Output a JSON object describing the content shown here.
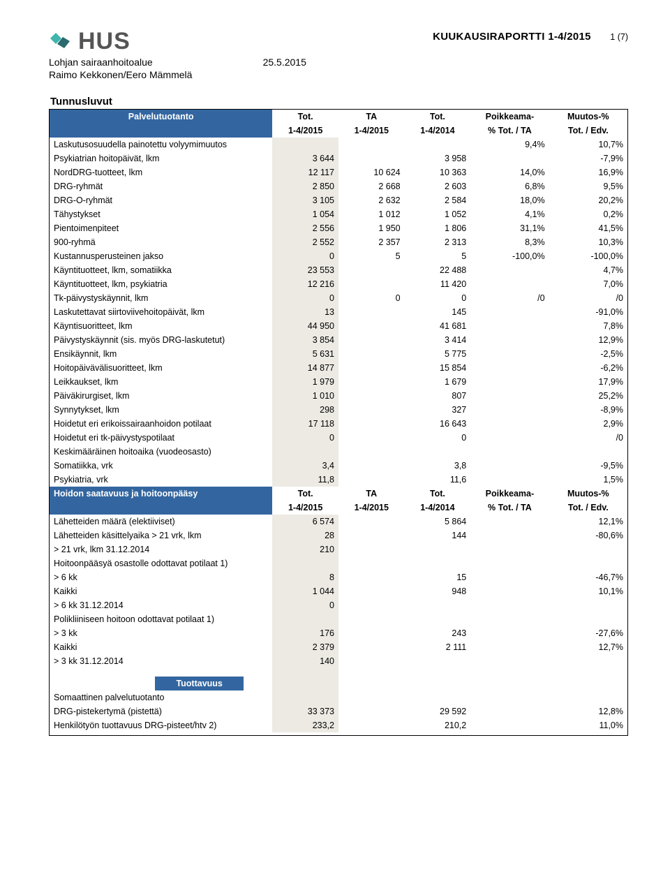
{
  "header": {
    "org_text": "HUS",
    "doc_title": "KUUKAUSIRAPORTTI 1-4/2015",
    "page_num": "1 (7)",
    "unit": "Lohjan sairaanhoitoalue",
    "date": "25.5.2015",
    "authors": "Raimo Kekkonen/Eero Mämmelä"
  },
  "section_title": "Tunnusluvut",
  "cols_header1": {
    "label": "Palvelutuotanto",
    "c1a": "Tot.",
    "c1b": "1-4/2015",
    "c2a": "TA",
    "c2b": "1-4/2015",
    "c3a": "Tot.",
    "c3b": "1-4/2014",
    "c4a": "Poikkeama-",
    "c4b": "% Tot. / TA",
    "c5a": "Muutos-%",
    "c5b": "Tot. / Edv."
  },
  "rows1": [
    {
      "label": "Laskutusosuudella painotettu volyymimuutos",
      "v": [
        "",
        "",
        "",
        "9,4%",
        "10,7%"
      ]
    },
    {
      "label": "Psykiatrian hoitopäivät, lkm",
      "v": [
        "3 644",
        "",
        "3 958",
        "",
        "-7,9%"
      ]
    },
    {
      "label": "NordDRG-tuotteet, lkm",
      "v": [
        "12 117",
        "10 624",
        "10 363",
        "14,0%",
        "16,9%"
      ]
    },
    {
      "label": "DRG-ryhmät",
      "v": [
        "2 850",
        "2 668",
        "2 603",
        "6,8%",
        "9,5%"
      ]
    },
    {
      "label": "DRG-O-ryhmät",
      "v": [
        "3 105",
        "2 632",
        "2 584",
        "18,0%",
        "20,2%"
      ]
    },
    {
      "label": "Tähystykset",
      "v": [
        "1 054",
        "1 012",
        "1 052",
        "4,1%",
        "0,2%"
      ]
    },
    {
      "label": "Pientoimenpiteet",
      "v": [
        "2 556",
        "1 950",
        "1 806",
        "31,1%",
        "41,5%"
      ]
    },
    {
      "label": "900-ryhmä",
      "v": [
        "2 552",
        "2 357",
        "2 313",
        "8,3%",
        "10,3%"
      ]
    },
    {
      "label": "Kustannusperusteinen jakso",
      "v": [
        "0",
        "5",
        "5",
        "-100,0%",
        "-100,0%"
      ]
    },
    {
      "label": "Käyntituotteet, lkm, somatiikka",
      "v": [
        "23 553",
        "",
        "22 488",
        "",
        "4,7%"
      ]
    },
    {
      "label": "Käyntituotteet, lkm, psykiatria",
      "v": [
        "12 216",
        "",
        "11 420",
        "",
        "7,0%"
      ]
    },
    {
      "label": "Tk-päivystyskäynnit, lkm",
      "v": [
        "0",
        "0",
        "0",
        "/0",
        "/0"
      ]
    },
    {
      "label": "Laskutettavat siirtoviivehoitopäivät, lkm",
      "v": [
        "13",
        "",
        "145",
        "",
        "-91,0%"
      ]
    },
    {
      "label": "Käyntisuoritteet, lkm",
      "v": [
        "44 950",
        "",
        "41 681",
        "",
        "7,8%"
      ]
    },
    {
      "label": "Päivystyskäynnit (sis. myös DRG-laskutetut)",
      "v": [
        "3 854",
        "",
        "3 414",
        "",
        "12,9%"
      ]
    },
    {
      "label": "Ensikäynnit, lkm",
      "v": [
        "5 631",
        "",
        "5 775",
        "",
        "-2,5%"
      ]
    },
    {
      "label": "Hoitopäivävälisuoritteet, lkm",
      "v": [
        "14 877",
        "",
        "15 854",
        "",
        "-6,2%"
      ]
    },
    {
      "label": "Leikkaukset, lkm",
      "v": [
        "1 979",
        "",
        "1 679",
        "",
        "17,9%"
      ]
    },
    {
      "label": "Päiväkirurgiset, lkm",
      "v": [
        "1 010",
        "",
        "807",
        "",
        "25,2%"
      ]
    },
    {
      "label": "Synnytykset, lkm",
      "v": [
        "298",
        "",
        "327",
        "",
        "-8,9%"
      ]
    },
    {
      "label": "Hoidetut eri erikoissairaanhoidon potilaat",
      "v": [
        "17 118",
        "",
        "16 643",
        "",
        "2,9%"
      ]
    },
    {
      "label": "Hoidetut eri tk-päivystyspotilaat",
      "v": [
        "0",
        "",
        "0",
        "",
        "/0"
      ]
    },
    {
      "label": "Keskimääräinen hoitoaika (vuodeosasto)",
      "v": [
        "",
        "",
        "",
        "",
        ""
      ]
    },
    {
      "label": "Somatiikka, vrk",
      "v": [
        "3,4",
        "",
        "3,8",
        "",
        "-9,5%"
      ]
    },
    {
      "label": "Psykiatria, vrk",
      "v": [
        "11,8",
        "",
        "11,6",
        "",
        "1,5%"
      ]
    }
  ],
  "cols_header2": {
    "label": "Hoidon saatavuus ja hoitoonpääsy",
    "c1a": "Tot.",
    "c1b": "1-4/2015",
    "c2a": "TA",
    "c2b": "1-4/2015",
    "c3a": "Tot.",
    "c3b": "1-4/2014",
    "c4a": "Poikkeama-",
    "c4b": "% Tot. / TA",
    "c5a": "Muutos-%",
    "c5b": "Tot. / Edv."
  },
  "rows2": [
    {
      "label": "Lähetteiden määrä (elektiiviset)",
      "v": [
        "6 574",
        "",
        "5 864",
        "",
        "12,1%"
      ]
    },
    {
      "label": "Lähetteiden käsittelyaika > 21 vrk, lkm",
      "v": [
        "28",
        "",
        "144",
        "",
        "-80,6%"
      ]
    },
    {
      "label": "> 21 vrk, lkm 31.12.2014",
      "v": [
        "210",
        "",
        "",
        "",
        ""
      ]
    },
    {
      "label": "Hoitoonpääsyä osastolle odottavat potilaat 1)",
      "v": [
        "",
        "",
        "",
        "",
        ""
      ]
    },
    {
      "label": "> 6 kk",
      "v": [
        "8",
        "",
        "15",
        "",
        "-46,7%"
      ]
    },
    {
      "label": "Kaikki",
      "v": [
        "1 044",
        "",
        "948",
        "",
        "10,1%"
      ]
    },
    {
      "label": "> 6 kk 31.12.2014",
      "v": [
        "0",
        "",
        "",
        "",
        ""
      ]
    },
    {
      "label": "Polikliiniseen hoitoon odottavat potilaat 1)",
      "v": [
        "",
        "",
        "",
        "",
        ""
      ]
    },
    {
      "label": "> 3 kk",
      "v": [
        "176",
        "",
        "243",
        "",
        "-27,6%"
      ]
    },
    {
      "label": "Kaikki",
      "v": [
        "2 379",
        "",
        "2 111",
        "",
        "12,7%"
      ]
    },
    {
      "label": "> 3 kk 31.12.2014",
      "v": [
        "140",
        "",
        "",
        "",
        ""
      ]
    }
  ],
  "section3_label": "Tuottavuus",
  "rows3": [
    {
      "label": "Somaattinen palvelutuotanto",
      "v": [
        "",
        "",
        "",
        "",
        ""
      ]
    },
    {
      "label": "DRG-pistekertymä (pistettä)",
      "v": [
        "33 373",
        "",
        "29 592",
        "",
        "12,8%"
      ]
    },
    {
      "label": "Henkilötyön tuottavuus DRG-pisteet/htv 2)",
      "v": [
        "233,2",
        "",
        "210,2",
        "",
        "11,0%"
      ]
    }
  ],
  "colors": {
    "header_blue": "#3366a0",
    "band": "#eceae3",
    "text": "#000000",
    "logo_teal": "#3fb5ad",
    "logo_dark": "#2b6a6f"
  }
}
